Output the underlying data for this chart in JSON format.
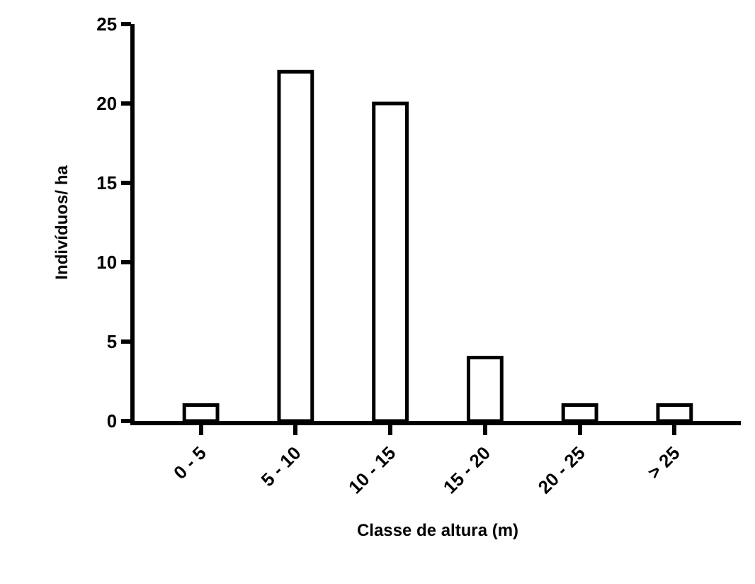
{
  "chart_data": {
    "type": "bar",
    "categories": [
      "0 - 5",
      "5 - 10",
      "10 - 15",
      "15 - 20",
      "20 - 25",
      "> 25"
    ],
    "values": [
      1,
      22,
      20,
      4,
      1,
      1
    ],
    "color": "#ffffff",
    "xlabel": "Classe de altura (m)",
    "ylabel": "Indivíduos/ ha",
    "ylim": [
      0,
      25
    ],
    "yticks": [
      0,
      5,
      10,
      15,
      20,
      25
    ],
    "grid": false
  }
}
